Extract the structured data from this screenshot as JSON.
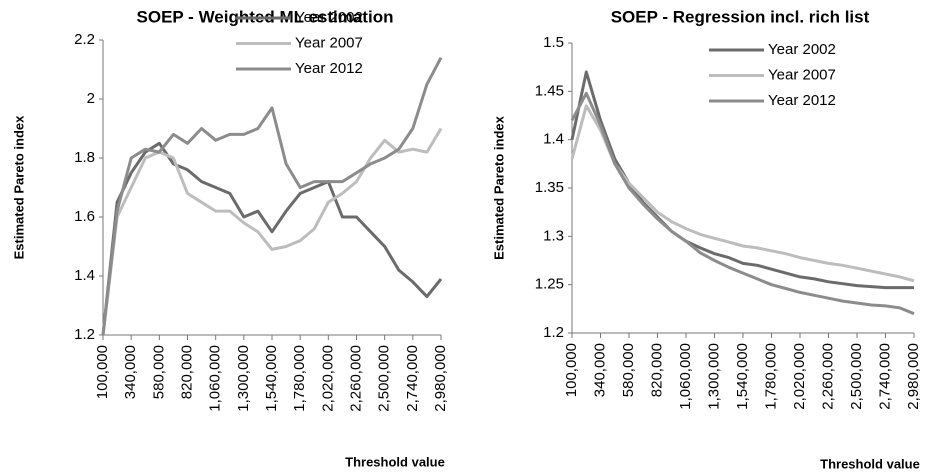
{
  "chart_data": [
    {
      "type": "line",
      "title": "SOEP - Weighted ML estimation",
      "x_label": "Threshold value",
      "y_label": "Estimated Pareto index",
      "x": [
        100000,
        220000,
        340000,
        460000,
        580000,
        700000,
        820000,
        940000,
        1060000,
        1180000,
        1300000,
        1420000,
        1540000,
        1660000,
        1780000,
        1900000,
        2020000,
        2140000,
        2260000,
        2380000,
        2500000,
        2620000,
        2740000,
        2860000,
        2980000
      ],
      "series": [
        {
          "name": "Year 2002",
          "color": "#6b6b6b",
          "values": [
            1.2,
            1.65,
            1.75,
            1.82,
            1.85,
            1.78,
            1.76,
            1.72,
            1.7,
            1.68,
            1.6,
            1.62,
            1.55,
            1.62,
            1.68,
            1.7,
            1.72,
            1.6,
            1.6,
            1.55,
            1.5,
            1.42,
            1.38,
            1.33,
            1.39
          ]
        },
        {
          "name": "Year 2007",
          "color": "#bdbdbd",
          "values": [
            1.2,
            1.6,
            1.7,
            1.8,
            1.82,
            1.8,
            1.68,
            1.65,
            1.62,
            1.62,
            1.58,
            1.55,
            1.49,
            1.5,
            1.52,
            1.56,
            1.65,
            1.68,
            1.72,
            1.8,
            1.86,
            1.82,
            1.83,
            1.82,
            1.9
          ]
        },
        {
          "name": "Year 2012",
          "color": "#8c8c8c",
          "values": [
            1.2,
            1.62,
            1.8,
            1.83,
            1.82,
            1.88,
            1.85,
            1.9,
            1.86,
            1.88,
            1.88,
            1.9,
            1.97,
            1.78,
            1.7,
            1.72,
            1.72,
            1.72,
            1.75,
            1.78,
            1.8,
            1.83,
            1.9,
            2.05,
            2.14
          ]
        }
      ],
      "xlim": [
        100000,
        2980000
      ],
      "xticks": [
        {
          "value": 100000,
          "label": "100,000"
        },
        {
          "value": 340000,
          "label": "340,000"
        },
        {
          "value": 580000,
          "label": "580,000"
        },
        {
          "value": 820000,
          "label": "820,000"
        },
        {
          "value": 1060000,
          "label": "1,060,000"
        },
        {
          "value": 1300000,
          "label": "1,300,000"
        },
        {
          "value": 1540000,
          "label": "1,540,000"
        },
        {
          "value": 1780000,
          "label": "1,780,000"
        },
        {
          "value": 2020000,
          "label": "2,020,000"
        },
        {
          "value": 2260000,
          "label": "2,260,000"
        },
        {
          "value": 2500000,
          "label": "2,500,000"
        },
        {
          "value": 2740000,
          "label": "2,740,000"
        },
        {
          "value": 2980000,
          "label": "2,980,000"
        }
      ],
      "ylim": [
        1.2,
        2.2
      ],
      "yticks": [
        1.2,
        1.4,
        1.6,
        1.8,
        2,
        2.2
      ],
      "grid": false,
      "legend": "top-right"
    },
    {
      "type": "line",
      "title": "SOEP - Regression incl. rich list",
      "x_label": "Threshold value",
      "y_label": "Estimated Pareto index",
      "x": [
        100000,
        220000,
        340000,
        460000,
        580000,
        700000,
        820000,
        940000,
        1060000,
        1180000,
        1300000,
        1420000,
        1540000,
        1660000,
        1780000,
        1900000,
        2020000,
        2140000,
        2260000,
        2380000,
        2500000,
        2620000,
        2740000,
        2860000,
        2980000
      ],
      "series": [
        {
          "name": "Year 2002",
          "color": "#6b6b6b",
          "values": [
            1.4,
            1.47,
            1.42,
            1.38,
            1.355,
            1.335,
            1.32,
            1.305,
            1.295,
            1.288,
            1.282,
            1.278,
            1.272,
            1.27,
            1.266,
            1.262,
            1.258,
            1.256,
            1.253,
            1.251,
            1.249,
            1.248,
            1.247,
            1.247,
            1.247
          ]
        },
        {
          "name": "Year 2007",
          "color": "#bdbdbd",
          "values": [
            1.38,
            1.435,
            1.41,
            1.375,
            1.355,
            1.34,
            1.325,
            1.315,
            1.308,
            1.302,
            1.298,
            1.294,
            1.29,
            1.288,
            1.285,
            1.282,
            1.278,
            1.275,
            1.272,
            1.27,
            1.267,
            1.264,
            1.261,
            1.258,
            1.254
          ]
        },
        {
          "name": "Year 2012",
          "color": "#8c8c8c",
          "values": [
            1.42,
            1.448,
            1.415,
            1.375,
            1.35,
            1.333,
            1.318,
            1.305,
            1.295,
            1.283,
            1.275,
            1.268,
            1.262,
            1.256,
            1.25,
            1.246,
            1.242,
            1.239,
            1.236,
            1.233,
            1.231,
            1.229,
            1.228,
            1.226,
            1.22
          ]
        }
      ],
      "xlim": [
        100000,
        2980000
      ],
      "xticks": [
        {
          "value": 100000,
          "label": "100,000"
        },
        {
          "value": 340000,
          "label": "340,000"
        },
        {
          "value": 580000,
          "label": "580,000"
        },
        {
          "value": 820000,
          "label": "820,000"
        },
        {
          "value": 1060000,
          "label": "1,060,000"
        },
        {
          "value": 1300000,
          "label": "1,300,000"
        },
        {
          "value": 1540000,
          "label": "1,540,000"
        },
        {
          "value": 1780000,
          "label": "1,780,000"
        },
        {
          "value": 2020000,
          "label": "2,020,000"
        },
        {
          "value": 2260000,
          "label": "2,260,000"
        },
        {
          "value": 2500000,
          "label": "2,500,000"
        },
        {
          "value": 2740000,
          "label": "2,740,000"
        },
        {
          "value": 2980000,
          "label": "2,980,000"
        }
      ],
      "ylim": [
        1.2,
        1.5
      ],
      "yticks": [
        1.2,
        1.25,
        1.3,
        1.35,
        1.4,
        1.45,
        1.5
      ],
      "grid": false,
      "legend": "top-right"
    }
  ]
}
